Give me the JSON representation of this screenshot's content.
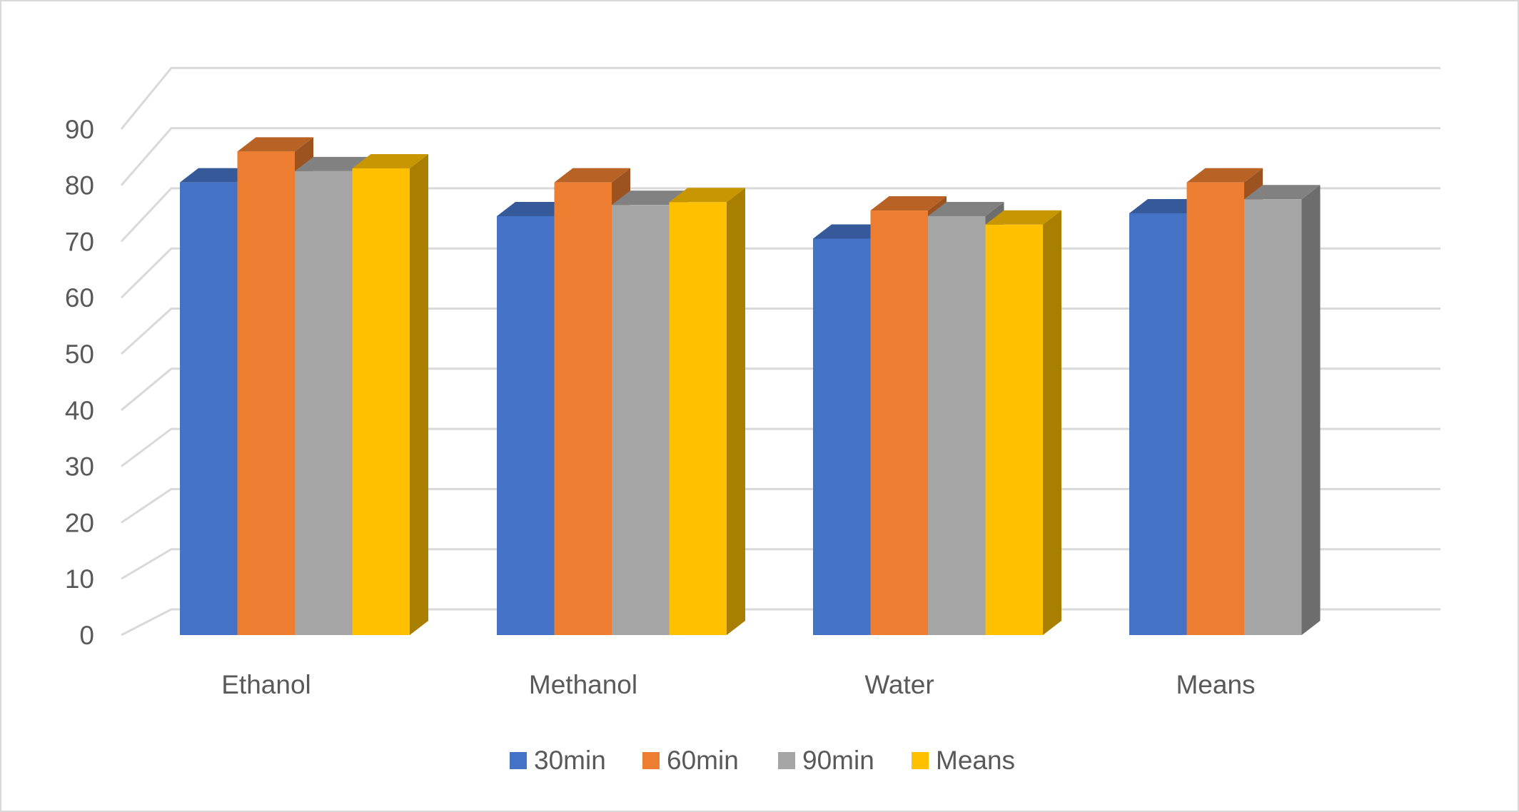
{
  "chart_data": {
    "type": "bar",
    "title": "",
    "xlabel": "",
    "ylabel": "",
    "ylim": [
      0,
      90
    ],
    "y_ticks": [
      0,
      10,
      20,
      30,
      40,
      50,
      60,
      70,
      80,
      90
    ],
    "grid": true,
    "legend_position": "bottom",
    "style": "3d-clustered-column",
    "categories": [
      "Ethanol",
      "Methanol",
      "Water",
      "Means"
    ],
    "series": [
      {
        "name": "30min",
        "color": "#4472C4",
        "values": [
          80.5,
          74.5,
          70.5,
          75
        ]
      },
      {
        "name": "60min",
        "color": "#ED7D31",
        "values": [
          86,
          80.5,
          75.5,
          80.5
        ]
      },
      {
        "name": "90min",
        "color": "#A5A5A5",
        "values": [
          82.5,
          76.5,
          74.5,
          77.5
        ]
      },
      {
        "name": "Means",
        "color": "#FFC000",
        "values": [
          83,
          77,
          73,
          null
        ]
      }
    ]
  }
}
